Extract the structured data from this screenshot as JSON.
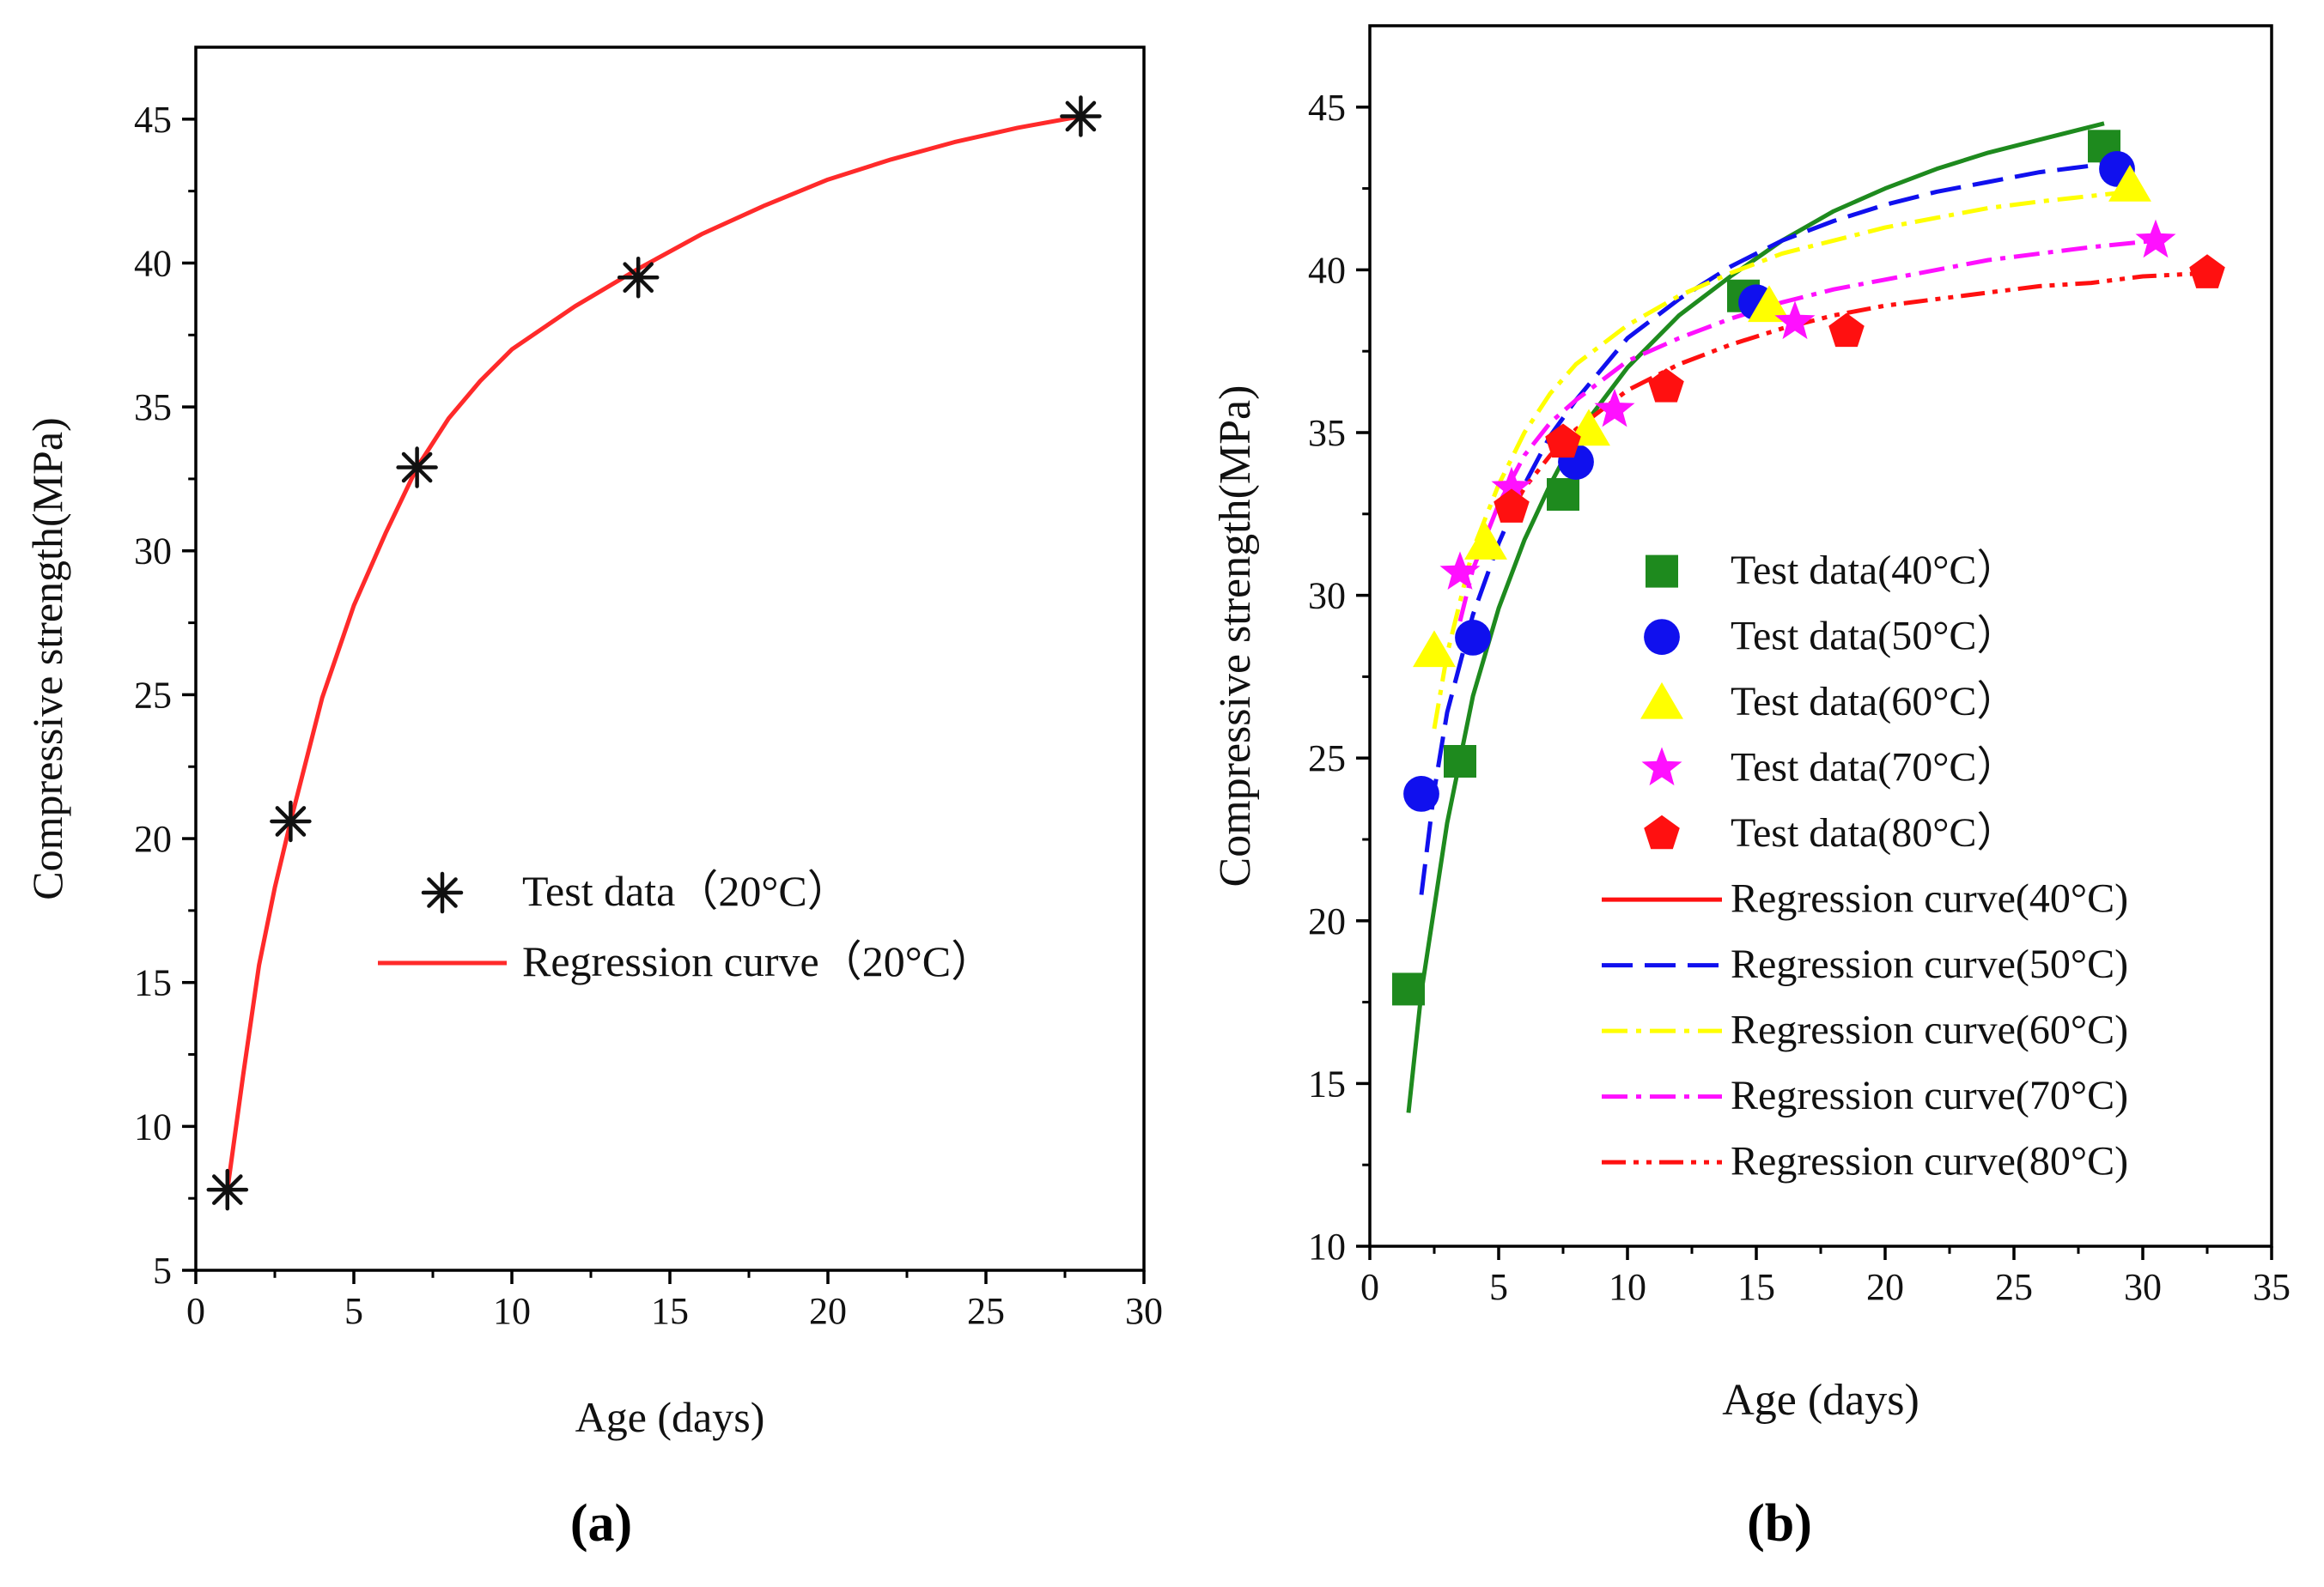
{
  "chart_data": [
    {
      "id": "a",
      "type": "scatter",
      "panel_label": "(a)",
      "xlabel": "Age (days)",
      "ylabel": "Compressive strength(MPa)",
      "xlim": [
        0,
        30
      ],
      "ylim": [
        5,
        47.5
      ],
      "xticks": [
        0,
        5,
        10,
        15,
        20,
        25,
        30
      ],
      "yticks": [
        5,
        10,
        15,
        20,
        25,
        30,
        35,
        40,
        45
      ],
      "legend_position": "center-right",
      "series": [
        {
          "name": "Test data（20°C）",
          "kind": "points",
          "marker": "asterisk",
          "color": "#111111",
          "x": [
            1,
            3,
            7,
            14,
            28
          ],
          "y": [
            7.8,
            20.6,
            32.9,
            39.5,
            45.1
          ]
        },
        {
          "name": "Regression curve（20°C）",
          "kind": "curve",
          "dash": "solid",
          "color": "#ff2a2a",
          "x": [
            1,
            1.5,
            2,
            2.5,
            3,
            4,
            5,
            6,
            7,
            8,
            9,
            10,
            12,
            14,
            16,
            18,
            20,
            22,
            24,
            26,
            28
          ],
          "y": [
            7.8,
            11.8,
            15.6,
            18.3,
            20.6,
            24.9,
            28.1,
            30.6,
            32.9,
            34.6,
            35.9,
            37.0,
            38.5,
            39.8,
            41.0,
            42.0,
            42.9,
            43.6,
            44.2,
            44.7,
            45.1
          ]
        }
      ]
    },
    {
      "id": "b",
      "type": "scatter",
      "panel_label": "(b)",
      "xlabel": "Age (days)",
      "ylabel": "Compressive strength(MPa)",
      "xlim": [
        0,
        35
      ],
      "ylim": [
        10,
        47.5
      ],
      "xticks": [
        0,
        5,
        10,
        15,
        20,
        25,
        30,
        35
      ],
      "yticks": [
        10,
        15,
        20,
        25,
        30,
        35,
        40,
        45
      ],
      "legend_position": "center-right",
      "series": [
        {
          "name": "Test data(40°C）",
          "kind": "points",
          "marker": "square",
          "color": "#1e8a1e",
          "x": [
            1.5,
            3.5,
            7.5,
            14.5,
            28.5
          ],
          "y": [
            17.9,
            24.9,
            33.1,
            39.2,
            43.8
          ]
        },
        {
          "name": "Test data(50°C）",
          "kind": "points",
          "marker": "circle",
          "color": "#1010ee",
          "x": [
            2,
            4,
            8,
            15,
            29
          ],
          "y": [
            23.9,
            28.7,
            34.1,
            39.0,
            43.1
          ]
        },
        {
          "name": "Test data(60°C）",
          "kind": "points",
          "marker": "triangle",
          "color": "#ffff00",
          "x": [
            2.5,
            4.5,
            8.5,
            15.5,
            29.5
          ],
          "y": [
            28.3,
            31.6,
            35.1,
            38.9,
            42.6
          ]
        },
        {
          "name": "Test data(70°C）",
          "kind": "points",
          "marker": "star",
          "color": "#ff10ff",
          "x": [
            3.5,
            5.5,
            9.5,
            16.5,
            30.5
          ],
          "y": [
            30.7,
            33.3,
            35.7,
            38.4,
            40.9
          ]
        },
        {
          "name": "Test data(80°C）",
          "kind": "points",
          "marker": "pentagon",
          "color": "#ff1010",
          "x": [
            5.5,
            7.5,
            11.5,
            18.5,
            32.5
          ],
          "y": [
            32.7,
            34.7,
            36.4,
            38.1,
            39.9
          ]
        },
        {
          "name": "Regression curve(40°C)",
          "kind": "curve",
          "dash": "solid",
          "color": "#ff1010",
          "draw_color": "#1e8a1e",
          "x": [
            1.5,
            2,
            3,
            4,
            5,
            6,
            7,
            8,
            10,
            12,
            14,
            16,
            18,
            20,
            22,
            24,
            26,
            28.5
          ],
          "y": [
            14.1,
            17.8,
            23.0,
            26.9,
            29.6,
            31.7,
            33.4,
            34.9,
            37.0,
            38.6,
            39.8,
            40.9,
            41.8,
            42.5,
            43.1,
            43.6,
            44.0,
            44.5
          ]
        },
        {
          "name": "Regression curve(50°C)",
          "kind": "curve",
          "dash": "dash",
          "color": "#1010ee",
          "x": [
            2,
            2.5,
            3,
            4,
            5,
            6,
            7,
            8,
            10,
            12,
            14,
            16,
            18,
            20,
            22,
            24,
            26,
            29
          ],
          "y": [
            20.8,
            24.0,
            26.4,
            29.4,
            31.6,
            33.4,
            34.9,
            36.0,
            37.9,
            39.1,
            40.1,
            40.9,
            41.5,
            42.0,
            42.4,
            42.7,
            43.0,
            43.3
          ]
        },
        {
          "name": "Regression curve(60°C)",
          "kind": "curve",
          "dash": "dashdot",
          "color": "#ffff00",
          "x": [
            2.5,
            3,
            4,
            5,
            6,
            7,
            8,
            10,
            12,
            14,
            16,
            18,
            20,
            22,
            24,
            26,
            29.5
          ],
          "y": [
            25.9,
            28.2,
            31.4,
            33.4,
            35.0,
            36.2,
            37.1,
            38.3,
            39.2,
            39.9,
            40.5,
            40.9,
            41.3,
            41.6,
            41.9,
            42.1,
            42.4
          ]
        },
        {
          "name": "Regression curve(70°C)",
          "kind": "curve",
          "dash": "dashdot",
          "color": "#ff10ff",
          "x": [
            3.5,
            4,
            5,
            6,
            7,
            8,
            10,
            12,
            14,
            16,
            18,
            20,
            22,
            24,
            26,
            28,
            30.5
          ],
          "y": [
            29.2,
            30.8,
            32.8,
            34.3,
            35.3,
            36.0,
            37.2,
            37.9,
            38.5,
            39.0,
            39.4,
            39.7,
            40.0,
            40.3,
            40.5,
            40.7,
            40.9
          ]
        },
        {
          "name": "Regression curve(80°C)",
          "kind": "curve",
          "dash": "dashdotdot",
          "color": "#ff1010",
          "x": [
            5.5,
            6,
            7,
            8,
            10,
            12,
            14,
            16,
            18,
            20,
            22,
            24,
            26,
            28,
            30,
            32.5
          ],
          "y": [
            32.6,
            33.3,
            34.3,
            35.1,
            36.3,
            37.1,
            37.7,
            38.2,
            38.6,
            38.9,
            39.1,
            39.3,
            39.5,
            39.6,
            39.8,
            39.9
          ]
        }
      ]
    }
  ]
}
